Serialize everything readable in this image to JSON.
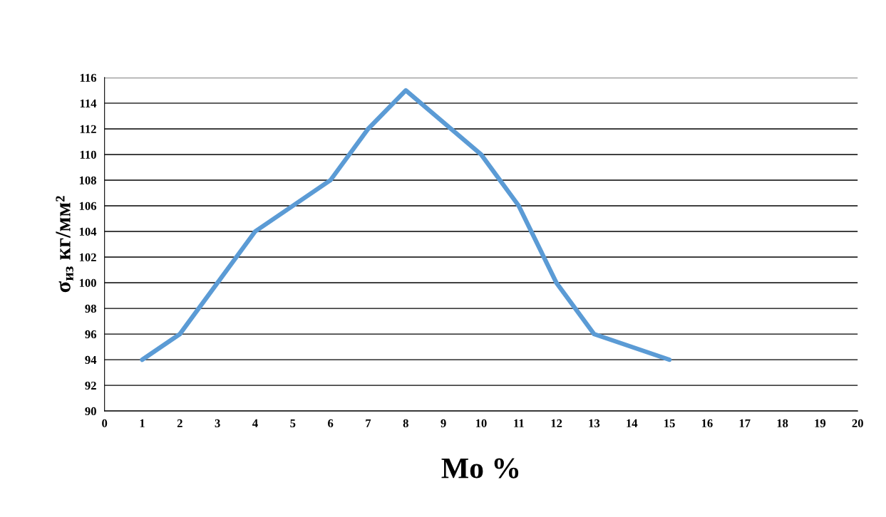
{
  "chart_data": {
    "type": "line",
    "xlabel": "Mo %",
    "ylabel": "σ$_{из}$ кг/мм²",
    "x": [
      1,
      2,
      3,
      4,
      5,
      6,
      7,
      8,
      9,
      10,
      11,
      12,
      13,
      14,
      15
    ],
    "series": [
      {
        "color": "#5b9bd5",
        "values": [
          94,
          96,
          100,
          104,
          106,
          108,
          112,
          115,
          112.5,
          110,
          106,
          100,
          96,
          95,
          94
        ]
      }
    ],
    "xlim": [
      0,
      20
    ],
    "xticks": [
      0,
      1,
      2,
      3,
      4,
      5,
      6,
      7,
      8,
      9,
      10,
      11,
      12,
      13,
      14,
      15,
      16,
      17,
      18,
      19,
      20
    ],
    "ylim": [
      90,
      116
    ],
    "yticks": [
      90,
      92,
      94,
      96,
      98,
      100,
      102,
      104,
      106,
      108,
      110,
      112,
      114,
      116
    ],
    "grid": "y",
    "legend": false,
    "marker": "none",
    "line_style": "solid"
  }
}
